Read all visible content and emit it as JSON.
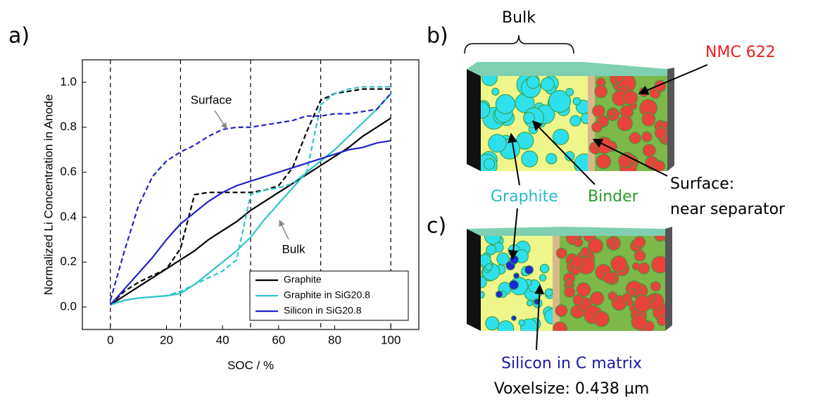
{
  "chart_data": {
    "type": "line",
    "x_label": "SOC / %",
    "y_label": "Normalized Li Concentration in Anode",
    "x": [
      0,
      5,
      10,
      15,
      20,
      25,
      30,
      35,
      40,
      45,
      50,
      55,
      60,
      65,
      70,
      75,
      80,
      85,
      90,
      95,
      100
    ],
    "series": [
      {
        "name": "Graphite",
        "color": "#000000",
        "values": [
          0.01,
          0.05,
          0.09,
          0.13,
          0.17,
          0.21,
          0.25,
          0.3,
          0.34,
          0.38,
          0.43,
          0.47,
          0.51,
          0.55,
          0.59,
          0.63,
          0.67,
          0.71,
          0.76,
          0.8,
          0.84
        ],
        "surface": [
          0.01,
          0.07,
          0.11,
          0.14,
          0.17,
          0.26,
          0.5,
          0.51,
          0.51,
          0.51,
          0.51,
          0.52,
          0.54,
          0.62,
          0.78,
          0.92,
          0.95,
          0.96,
          0.97,
          0.97,
          0.97
        ]
      },
      {
        "name": "Graphite in SiG20.8",
        "color": "#2ec4c8",
        "values": [
          0.01,
          0.03,
          0.04,
          0.045,
          0.05,
          0.06,
          0.1,
          0.15,
          0.2,
          0.25,
          0.31,
          0.39,
          0.46,
          0.53,
          0.6,
          0.65,
          0.7,
          0.76,
          0.82,
          0.88,
          0.95
        ],
        "surface": [
          0.01,
          0.03,
          0.04,
          0.045,
          0.05,
          0.07,
          0.1,
          0.13,
          0.16,
          0.21,
          0.5,
          0.52,
          0.53,
          0.55,
          0.6,
          0.9,
          0.95,
          0.97,
          0.98,
          0.98,
          0.98
        ]
      },
      {
        "name": "Silicon in SiG20.8",
        "color": "#2222cc",
        "values": [
          0.01,
          0.08,
          0.15,
          0.22,
          0.3,
          0.37,
          0.42,
          0.47,
          0.51,
          0.54,
          0.56,
          0.58,
          0.6,
          0.62,
          0.64,
          0.66,
          0.68,
          0.7,
          0.71,
          0.73,
          0.74
        ],
        "surface": [
          0.03,
          0.25,
          0.45,
          0.58,
          0.65,
          0.69,
          0.72,
          0.76,
          0.79,
          0.8,
          0.8,
          0.81,
          0.82,
          0.83,
          0.85,
          0.85,
          0.86,
          0.86,
          0.87,
          0.88,
          0.95
        ]
      }
    ],
    "annotations": [
      "Surface",
      "Bulk"
    ],
    "vlines": [
      0,
      25,
      50,
      75,
      100
    ],
    "xlim": [
      -10,
      110
    ],
    "xticks": [
      0,
      20,
      40,
      60,
      80,
      100
    ],
    "ylim": [
      -0.1,
      1.1
    ],
    "yticks": [
      {
        "value": 0,
        "label": "0.0"
      },
      {
        "value": 0.2,
        "label": "0.2"
      },
      {
        "value": 0.4,
        "label": "0.4"
      },
      {
        "value": 0.6,
        "label": "0.6"
      },
      {
        "value": 0.8,
        "label": "0.8"
      },
      {
        "value": 1,
        "label": "1.0"
      }
    ],
    "legend": "lower right"
  },
  "panel_labels": [
    "a)",
    "b)",
    "c)"
  ],
  "images": {
    "bulk": "Bulk",
    "cathode": "NMC 622",
    "graphite": "Graphite",
    "binder": "Binder",
    "surface": "Surface:",
    "surface_note": "near separator",
    "silicon": "Silicon in C matrix",
    "voxel": "Voxelsize: 0.438 µm"
  }
}
